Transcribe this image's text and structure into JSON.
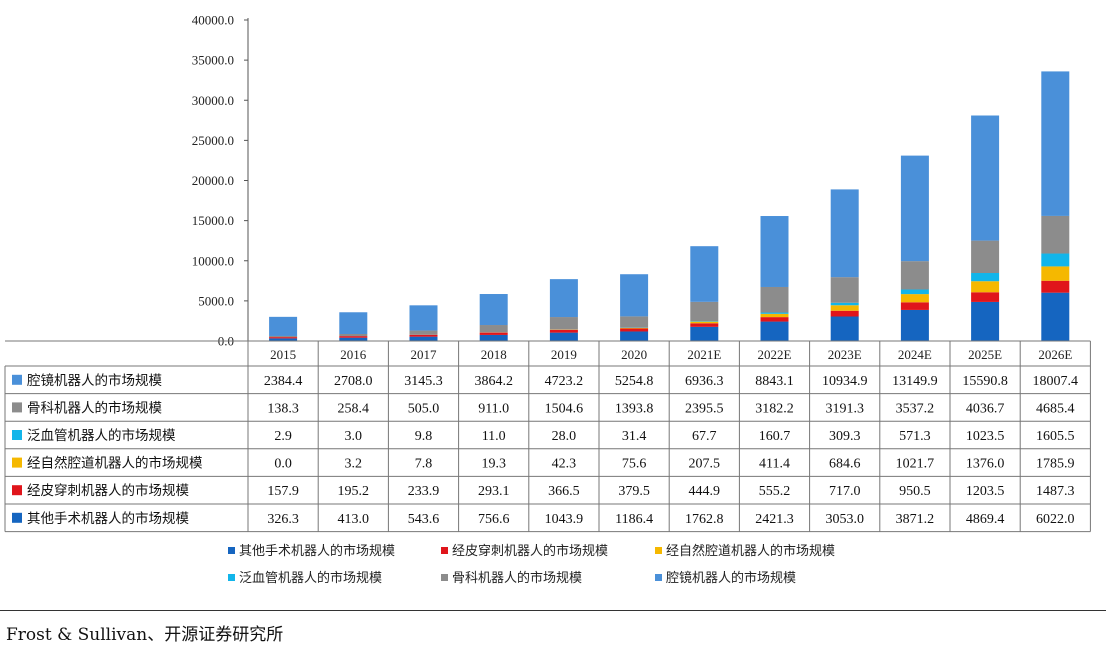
{
  "source_text": "Frost & Sullivan、开源证券研究所",
  "chart_data": {
    "type": "bar",
    "stacked": true,
    "categories": [
      "2015",
      "2016",
      "2017",
      "2018",
      "2019",
      "2020",
      "2021E",
      "2022E",
      "2023E",
      "2024E",
      "2025E",
      "2026E"
    ],
    "ylim": [
      0,
      40000
    ],
    "yticks": [
      "0.0",
      "5000.0",
      "10000.0",
      "15000.0",
      "20000.0",
      "25000.0",
      "30000.0",
      "35000.0",
      "40000.0"
    ],
    "grid": false,
    "legend_position": "bottom",
    "series": [
      {
        "name": "其他手术机器人的市场规模",
        "color": "#1565c0",
        "values": [
          326.3,
          413.0,
          543.6,
          756.6,
          1043.9,
          1186.4,
          1762.8,
          2421.3,
          3053.0,
          3871.2,
          4869.4,
          6022.0
        ],
        "labels": [
          "326.3",
          "413.0",
          "543.6",
          "756.6",
          "1043.9",
          "1186.4",
          "1762.8",
          "2421.3",
          "3053.0",
          "3871.2",
          "4869.4",
          "6022.0"
        ]
      },
      {
        "name": "经皮穿刺机器人的市场规模",
        "color": "#e0151b",
        "values": [
          157.9,
          195.2,
          233.9,
          293.1,
          366.5,
          379.5,
          444.9,
          555.2,
          717.0,
          950.5,
          1203.5,
          1487.3
        ],
        "labels": [
          "157.9",
          "195.2",
          "233.9",
          "293.1",
          "366.5",
          "379.5",
          "444.9",
          "555.2",
          "717.0",
          "950.5",
          "1203.5",
          "1487.3"
        ]
      },
      {
        "name": "经自然腔道机器人的市场规模",
        "color": "#f5b800",
        "values": [
          0.0,
          3.2,
          7.8,
          19.3,
          42.3,
          75.6,
          207.5,
          411.4,
          684.6,
          1021.7,
          1376.0,
          1785.9
        ],
        "labels": [
          "0.0",
          "3.2",
          "7.8",
          "19.3",
          "42.3",
          "75.6",
          "207.5",
          "411.4",
          "684.6",
          "1021.7",
          "1376.0",
          "1785.9"
        ]
      },
      {
        "name": "泛血管机器人的市场规模",
        "color": "#12b5ea",
        "values": [
          2.9,
          3.0,
          9.8,
          11.0,
          28.0,
          31.4,
          67.7,
          160.7,
          309.3,
          571.3,
          1023.5,
          1605.5
        ],
        "labels": [
          "2.9",
          "3.0",
          "9.8",
          "11.0",
          "28.0",
          "31.4",
          "67.7",
          "160.7",
          "309.3",
          "571.3",
          "1023.5",
          "1605.5"
        ]
      },
      {
        "name": "骨科机器人的市场规模",
        "color": "#8c8c8c",
        "values": [
          138.3,
          258.4,
          505.0,
          911.0,
          1504.6,
          1393.8,
          2395.5,
          3182.2,
          3191.3,
          3537.2,
          4036.7,
          4685.4
        ],
        "labels": [
          "138.3",
          "258.4",
          "505.0",
          "911.0",
          "1504.6",
          "1393.8",
          "2395.5",
          "3182.2",
          "3191.3",
          "3537.2",
          "4036.7",
          "4685.4"
        ]
      },
      {
        "name": "腔镜机器人的市场规模",
        "color": "#4a90d9",
        "values": [
          2384.4,
          2708.0,
          3145.3,
          3864.2,
          4723.2,
          5254.8,
          6936.3,
          8843.1,
          10934.9,
          13149.9,
          15590.8,
          18007.4
        ],
        "labels": [
          "2384.4",
          "2708.0",
          "3145.3",
          "3864.2",
          "4723.2",
          "5254.8",
          "6936.3",
          "8843.1",
          "10934.9",
          "13149.9",
          "15590.8",
          "18007.4"
        ]
      }
    ],
    "table_row_order": [
      5,
      4,
      3,
      2,
      1,
      0
    ],
    "legend_order": [
      0,
      1,
      2,
      3,
      4,
      5
    ]
  }
}
